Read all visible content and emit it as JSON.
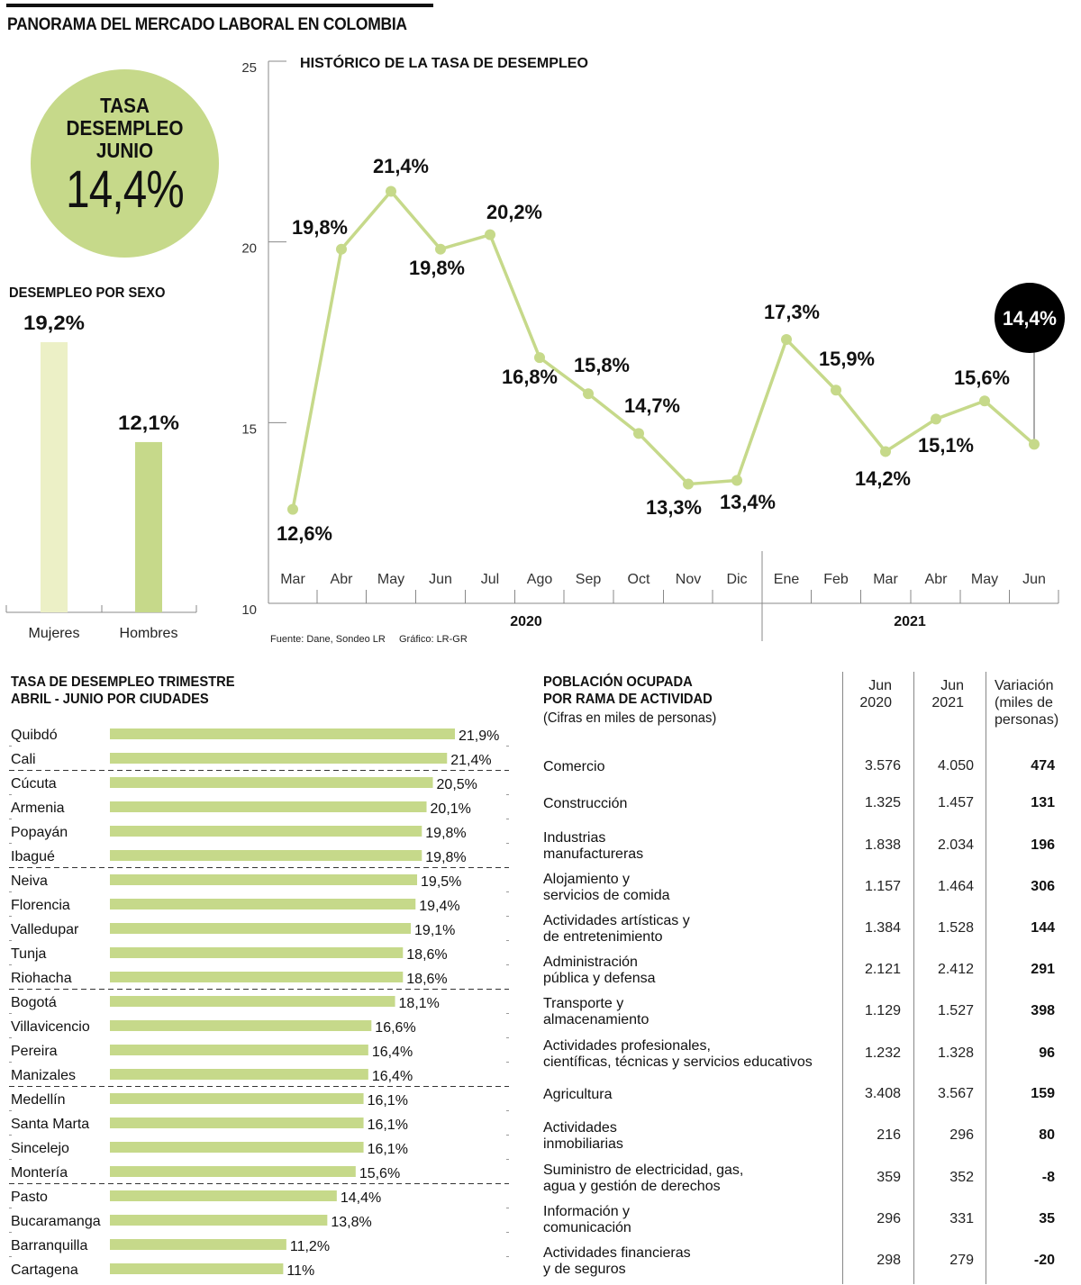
{
  "title": "PANORAMA DEL MERCADO LABORAL EN COLOMBIA",
  "colors": {
    "accent_green": "#c6d98a",
    "light_green": "#ecf0c6",
    "highlight_black": "#000000",
    "axis_gray": "#888888"
  },
  "kpi": {
    "label_lines": [
      "TASA",
      "DESEMPLEO",
      "JUNIO"
    ],
    "value": "14,4%"
  },
  "source": "Fuente: Dane, Sondeo LR",
  "credit": "Gráfico: LR-GR",
  "table": {
    "title_lines": [
      "POBLACIÓN OCUPADA",
      "POR RAMA DE ACTIVIDAD"
    ],
    "subtitle": "(Cifras en miles de personas)",
    "columns": [
      {
        "lines": [
          "Jun",
          "2020"
        ]
      },
      {
        "lines": [
          "Jun",
          "2021"
        ]
      },
      {
        "lines": [
          "Variación",
          "(miles de",
          "personas)"
        ]
      }
    ],
    "rows": [
      {
        "label": [
          "Comercio"
        ],
        "jun2020": "3.576",
        "jun2021": "4.050",
        "variation": "474"
      },
      {
        "label": [
          "Construcción"
        ],
        "jun2020": "1.325",
        "jun2021": "1.457",
        "variation": "131"
      },
      {
        "label": [
          "Industrias",
          "manufactureras"
        ],
        "jun2020": "1.838",
        "jun2021": "2.034",
        "variation": "196"
      },
      {
        "label": [
          "Alojamiento y",
          "servicios de comida"
        ],
        "jun2020": "1.157",
        "jun2021": "1.464",
        "variation": "306"
      },
      {
        "label": [
          "Actividades artísticas y",
          "de entretenimiento"
        ],
        "jun2020": "1.384",
        "jun2021": "1.528",
        "variation": "144"
      },
      {
        "label": [
          "Administración",
          "pública y defensa"
        ],
        "jun2020": "2.121",
        "jun2021": "2.412",
        "variation": "291"
      },
      {
        "label": [
          "Transporte y",
          "almacenamiento"
        ],
        "jun2020": "1.129",
        "jun2021": "1.527",
        "variation": "398"
      },
      {
        "label": [
          "Actividades profesionales,",
          "científicas, técnicas y servicios educativos"
        ],
        "jun2020": "1.232",
        "jun2021": "1.328",
        "variation": "96"
      },
      {
        "label": [
          "Agricultura"
        ],
        "jun2020": "3.408",
        "jun2021": "3.567",
        "variation": "159"
      },
      {
        "label": [
          "Actividades",
          "inmobiliarias"
        ],
        "jun2020": "216",
        "jun2021": "296",
        "variation": "80"
      },
      {
        "label": [
          "Suministro de electricidad, gas,",
          "agua y gestión de derechos"
        ],
        "jun2020": "359",
        "jun2021": "352",
        "variation": "-8"
      },
      {
        "label": [
          "Información y",
          "comunicación"
        ],
        "jun2020": "296",
        "jun2021": "331",
        "variation": "35"
      },
      {
        "label": [
          "Actividades financieras",
          "y de seguros"
        ],
        "jun2020": "298",
        "jun2021": "279",
        "variation": "-20"
      }
    ]
  },
  "chart_data": [
    {
      "type": "line",
      "title": "HISTÓRICO DE LA TASA DE DESEMPLEO",
      "x": [
        "Mar",
        "Abr",
        "May",
        "Jun",
        "Jul",
        "Ago",
        "Sep",
        "Oct",
        "Nov",
        "Dic",
        "Ene",
        "Feb",
        "Mar",
        "Abr",
        "May",
        "Jun"
      ],
      "year_groups": [
        {
          "label": "2020",
          "start_index": 0,
          "end_index": 9
        },
        {
          "label": "2021",
          "start_index": 10,
          "end_index": 15
        }
      ],
      "series": [
        {
          "name": "Tasa de desempleo (%)",
          "values": [
            12.6,
            19.8,
            21.4,
            19.8,
            20.2,
            16.8,
            15.8,
            14.7,
            13.3,
            13.4,
            17.3,
            15.9,
            14.2,
            15.1,
            15.6,
            14.4
          ],
          "labels": [
            "12,6%",
            "19,8%",
            "21,4%",
            "19,8%",
            "20,2%",
            "16,8%",
            "15,8%",
            "14,7%",
            "13,3%",
            "13,4%",
            "17,3%",
            "15,9%",
            "14,2%",
            "15,1%",
            "15,6%",
            "14,4%"
          ],
          "label_position": [
            "below",
            "above",
            "above",
            "below",
            "above",
            "below",
            "above",
            "above",
            "below",
            "below",
            "above",
            "above",
            "below",
            "below",
            "above",
            "callout"
          ]
        }
      ],
      "highlight": {
        "index": 15,
        "label": "14,4%"
      },
      "yticks": [
        10,
        15,
        20,
        25
      ],
      "ylim": [
        10,
        25
      ],
      "xlabel": "",
      "ylabel": "",
      "grid": false
    },
    {
      "type": "bar",
      "title": "DESEMPLEO POR SEXO",
      "categories": [
        "Mujeres",
        "Hombres"
      ],
      "values": [
        19.2,
        12.1
      ],
      "labels": [
        "19,2%",
        "12,1%"
      ],
      "bar_colors": [
        "#ecf0c6",
        "#c6d98a"
      ],
      "ylim": [
        0,
        20
      ]
    },
    {
      "type": "bar",
      "orientation": "horizontal",
      "title": "TASA DE DESEMPLEO TRIMESTRE ABRIL - JUNIO POR CIUDADES",
      "title_lines": [
        "TASA DE DESEMPLEO TRIMESTRE",
        "ABRIL - JUNIO POR CIUDADES"
      ],
      "categories": [
        "Quibdó",
        "Cali",
        "Cúcuta",
        "Armenia",
        "Popayán",
        "Ibagué",
        "Neiva",
        "Florencia",
        "Valledupar",
        "Tunja",
        "Riohacha",
        "Bogotá",
        "Villavicencio",
        "Pereira",
        "Manizales",
        "Medellín",
        "Santa Marta",
        "Sincelejo",
        "Montería",
        "Pasto",
        "Bucaramanga",
        "Barranquilla",
        "Cartagena"
      ],
      "values": [
        21.9,
        21.4,
        20.5,
        20.1,
        19.8,
        19.8,
        19.5,
        19.4,
        19.1,
        18.6,
        18.6,
        18.1,
        16.6,
        16.4,
        16.4,
        16.1,
        16.1,
        16.1,
        15.6,
        14.4,
        13.8,
        11.2,
        11.0
      ],
      "labels": [
        "21,9%",
        "21,4%",
        "20,5%",
        "20,1%",
        "19,8%",
        "19,8%",
        "19,5%",
        "19,4%",
        "19,1%",
        "18,6%",
        "18,6%",
        "18,1%",
        "16,6%",
        "16,4%",
        "16,4%",
        "16,1%",
        "16,1%",
        "16,1%",
        "15,6%",
        "14,4%",
        "13,8%",
        "11,2%",
        "11%"
      ],
      "dashed_separator_after_index": [
        1,
        5,
        10,
        14,
        18
      ]
    }
  ]
}
